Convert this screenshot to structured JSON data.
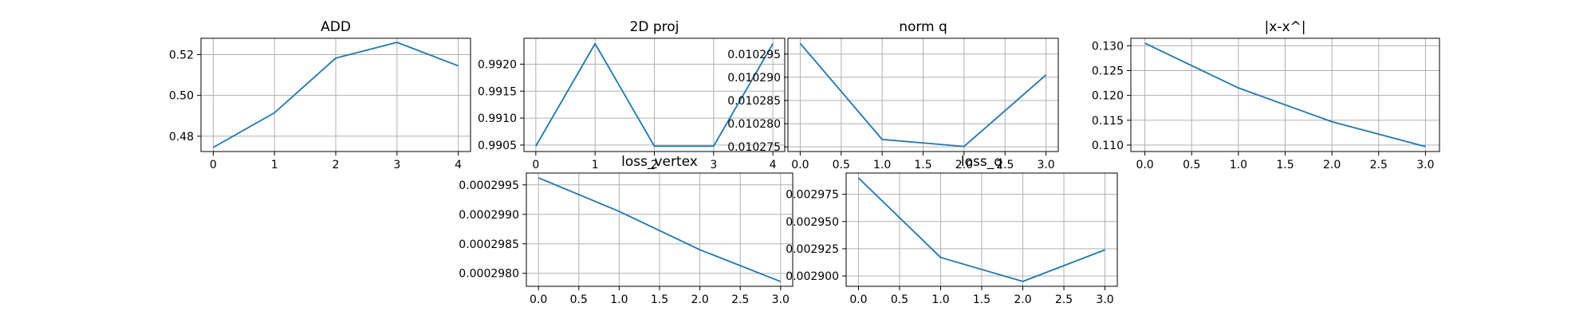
{
  "chart_data": [
    {
      "type": "line",
      "title": "ADD",
      "x": [
        0,
        1,
        2,
        3,
        4
      ],
      "series": [
        {
          "values": [
            0.4745,
            0.4915,
            0.5183,
            0.526,
            0.5145
          ]
        }
      ],
      "xticks": [
        0,
        1,
        2,
        3,
        4
      ],
      "xtick_labels": [
        "0",
        "1",
        "2",
        "3",
        "4"
      ],
      "yticks": [
        0.48,
        0.5,
        0.52
      ],
      "ytick_labels": [
        "0.48",
        "0.50",
        "0.52"
      ],
      "xlim": [
        -0.2,
        4.2
      ],
      "ylim": [
        0.4725,
        0.528
      ],
      "grid": true,
      "color": "#1f77b4"
    },
    {
      "type": "line",
      "title": "2D proj",
      "x": [
        0,
        1,
        2,
        3,
        4
      ],
      "series": [
        {
          "values": [
            0.99048,
            0.99238,
            0.99048,
            0.99048,
            0.99238
          ]
        }
      ],
      "xticks": [
        0,
        1,
        2,
        3,
        4
      ],
      "xtick_labels": [
        "0",
        "1",
        "2",
        "3",
        "4"
      ],
      "yticks": [
        0.9905,
        0.991,
        0.9915,
        0.992
      ],
      "ytick_labels": [
        "0.9905",
        "0.9910",
        "0.9915",
        "0.9920"
      ],
      "xlim": [
        -0.2,
        4.2
      ],
      "ylim": [
        0.99038,
        0.99248
      ],
      "grid": true,
      "color": "#1f77b4"
    },
    {
      "type": "line",
      "title": "norm q",
      "x": [
        0,
        1,
        2,
        3
      ],
      "series": [
        {
          "values": [
            0.0102973,
            0.0102766,
            0.0102751,
            0.0102905
          ]
        }
      ],
      "xticks": [
        0,
        0.5,
        1,
        1.5,
        2,
        2.5,
        3
      ],
      "xtick_labels": [
        "0.0",
        "0.5",
        "1.0",
        "1.5",
        "2.0",
        "2.5",
        "3.0"
      ],
      "yticks": [
        0.010275,
        0.01028,
        0.010285,
        0.01029,
        0.010295
      ],
      "ytick_labels": [
        "0.010275",
        "0.010280",
        "0.010285",
        "0.010290",
        "0.010295"
      ],
      "xlim": [
        -0.15,
        3.15
      ],
      "ylim": [
        0.010274,
        0.0102984
      ],
      "grid": true,
      "color": "#1f77b4"
    },
    {
      "type": "line",
      "title": "|x-x^|",
      "x": [
        0,
        1,
        2,
        3
      ],
      "series": [
        {
          "values": [
            0.1305,
            0.1215,
            0.1147,
            0.1097
          ]
        }
      ],
      "xticks": [
        0,
        0.5,
        1,
        1.5,
        2,
        2.5,
        3
      ],
      "xtick_labels": [
        "0.0",
        "0.5",
        "1.0",
        "1.5",
        "2.0",
        "2.5",
        "3.0"
      ],
      "yticks": [
        0.11,
        0.115,
        0.12,
        0.125,
        0.13
      ],
      "ytick_labels": [
        "0.110",
        "0.115",
        "0.120",
        "0.125",
        "0.130"
      ],
      "xlim": [
        -0.15,
        3.15
      ],
      "ylim": [
        0.1087,
        0.1315
      ],
      "grid": true,
      "color": "#1f77b4"
    },
    {
      "type": "line",
      "title": "loss_vertex",
      "x": [
        0,
        1,
        2,
        3
      ],
      "series": [
        {
          "values": [
            0.00029962,
            0.00029905,
            0.0002984,
            0.00029786
          ]
        }
      ],
      "xticks": [
        0,
        0.5,
        1,
        1.5,
        2,
        2.5,
        3
      ],
      "xtick_labels": [
        "0.0",
        "0.5",
        "1.0",
        "1.5",
        "2.0",
        "2.5",
        "3.0"
      ],
      "yticks": [
        0.000298,
        0.0002985,
        0.000299,
        0.0002995
      ],
      "ytick_labels": [
        "0.0002980",
        "0.0002985",
        "0.0002990",
        "0.0002995"
      ],
      "xlim": [
        -0.15,
        3.15
      ],
      "ylim": [
        0.00029778,
        0.0002997
      ],
      "grid": true,
      "color": "#1f77b4"
    },
    {
      "type": "line",
      "title": "loss_q",
      "x": [
        0,
        1,
        2,
        3
      ],
      "series": [
        {
          "values": [
            0.00299,
            0.002917,
            0.002895,
            0.002924
          ]
        }
      ],
      "xticks": [
        0,
        0.5,
        1,
        1.5,
        2,
        2.5,
        3
      ],
      "xtick_labels": [
        "0.0",
        "0.5",
        "1.0",
        "1.5",
        "2.0",
        "2.5",
        "3.0"
      ],
      "yticks": [
        0.0029,
        0.002925,
        0.00295,
        0.002975
      ],
      "ytick_labels": [
        "0.002900",
        "0.002925",
        "0.002950",
        "0.002975"
      ],
      "xlim": [
        -0.15,
        3.15
      ],
      "ylim": [
        0.0028905,
        0.0029945
      ],
      "grid": true,
      "color": "#1f77b4"
    }
  ]
}
